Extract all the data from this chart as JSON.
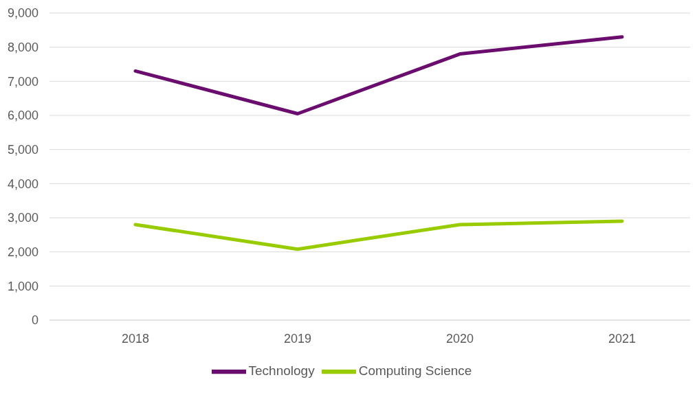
{
  "chart_data": {
    "type": "line",
    "categories": [
      "2018",
      "2019",
      "2020",
      "2021"
    ],
    "series": [
      {
        "name": "Technology",
        "color": "#6a0d6e",
        "values": [
          7300,
          6050,
          7800,
          8300
        ]
      },
      {
        "name": "Computing Science",
        "color": "#99cc00",
        "values": [
          2800,
          2080,
          2800,
          2900
        ]
      }
    ],
    "ylim": [
      0,
      9000
    ],
    "yticks": [
      0,
      {
        "value": 1000,
        "label": "1,000"
      },
      {
        "value": 2000,
        "label": "2,000"
      },
      {
        "value": 3000,
        "label": "3,000"
      },
      {
        "value": 4000,
        "label": "4,000"
      },
      {
        "value": 5000,
        "label": "5,000"
      },
      {
        "value": 6000,
        "label": "6,000"
      },
      {
        "value": 7000,
        "label": "7,000"
      },
      {
        "value": 8000,
        "label": "8,000"
      },
      {
        "value": 9000,
        "label": "9,000"
      }
    ],
    "grid": "y",
    "legend": "bottom",
    "marker": "none",
    "line_style": "solid"
  }
}
